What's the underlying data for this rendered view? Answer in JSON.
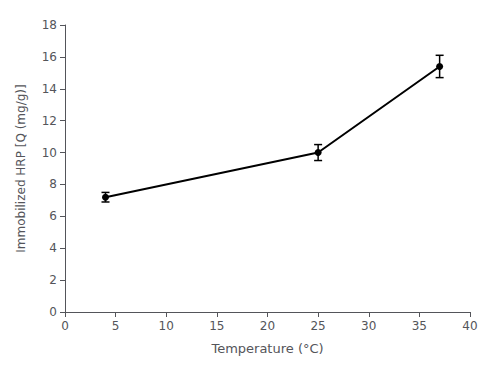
{
  "chart_data": {
    "type": "line",
    "x": [
      4,
      25,
      37
    ],
    "values": [
      7.2,
      10.0,
      15.4
    ],
    "yerr": [
      0.3,
      0.5,
      0.7
    ],
    "xlabel": "Temperature (°C)",
    "ylabel": "Immobilized HRP [Q (mg/g)]",
    "xlim": [
      0,
      40
    ],
    "ylim": [
      0,
      18
    ],
    "xticks": [
      0,
      5,
      10,
      15,
      20,
      25,
      30,
      35,
      40
    ],
    "yticks": [
      0,
      2,
      4,
      6,
      8,
      10,
      12,
      14,
      16,
      18
    ],
    "color": "#000000",
    "marker": "circle",
    "grid": false
  }
}
